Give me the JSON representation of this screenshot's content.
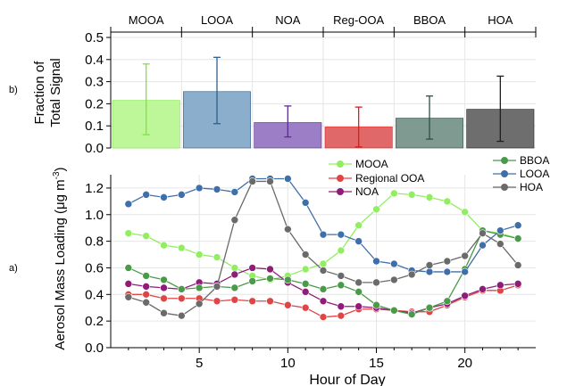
{
  "chart_data": [
    {
      "type": "bar",
      "panel_label": "b)",
      "categories": [
        "MOOA",
        "LOOA",
        "NOA",
        "Reg-OOA",
        "BBOA",
        "HOA"
      ],
      "values": [
        0.215,
        0.255,
        0.115,
        0.095,
        0.135,
        0.175
      ],
      "error_low": [
        0.06,
        0.11,
        0.05,
        0.005,
        0.04,
        0.03
      ],
      "error_high": [
        0.38,
        0.41,
        0.19,
        0.185,
        0.235,
        0.325
      ],
      "colors": [
        "#bdf79a",
        "#8aaecb",
        "#9c7ec6",
        "#e06868",
        "#7f9a91",
        "#6e6e6e"
      ],
      "error_colors": [
        "#7ae83a",
        "#2f5f8a",
        "#5a2d92",
        "#e21a1a",
        "#2f4f45",
        "#1f1f1f"
      ],
      "ylabel": [
        "Fraction of",
        "Total Signal"
      ],
      "ylim": [
        0,
        0.5
      ],
      "yticks": [
        "0.0",
        "0.1",
        "0.2",
        "0.3",
        "0.4",
        "0.5"
      ],
      "grid": true
    },
    {
      "type": "line",
      "panel_label": "a)",
      "xlabel": "Hour of Day",
      "ylabel": "Aerosol Mass Loading (μg m",
      "ylabel_sup": "-3",
      "ylabel_close": ")",
      "xlim": [
        0,
        24
      ],
      "ylim": [
        0,
        1.3
      ],
      "xticks": [
        "5",
        "10",
        "15",
        "20"
      ],
      "yticks": [
        "0.0",
        "0.2",
        "0.4",
        "0.6",
        "0.8",
        "1.0",
        "1.2"
      ],
      "grid": true,
      "x": [
        1,
        2,
        3,
        4,
        5,
        6,
        7,
        8,
        9,
        10,
        11,
        12,
        13,
        14,
        15,
        16,
        17,
        18,
        19,
        20,
        21,
        22,
        23
      ],
      "series": [
        {
          "name": "MOOA",
          "color": "#90ee60",
          "values": [
            0.86,
            0.84,
            0.77,
            0.75,
            0.7,
            0.68,
            0.6,
            0.54,
            0.51,
            0.54,
            0.59,
            0.63,
            0.73,
            0.92,
            1.04,
            1.16,
            1.15,
            1.13,
            1.1,
            1.02,
            0.88,
            0.86,
            0.82
          ]
        },
        {
          "name": "Regional OOA",
          "color": "#e04545",
          "values": [
            0.4,
            0.4,
            0.37,
            0.37,
            0.37,
            0.35,
            0.36,
            0.35,
            0.35,
            0.32,
            0.3,
            0.23,
            0.24,
            0.29,
            0.29,
            0.28,
            0.27,
            0.27,
            0.32,
            0.38,
            0.43,
            0.43,
            0.47
          ]
        },
        {
          "name": "NOA",
          "color": "#8e1d7a",
          "values": [
            0.48,
            0.46,
            0.45,
            0.44,
            0.49,
            0.48,
            0.55,
            0.6,
            0.59,
            0.49,
            0.42,
            0.35,
            0.31,
            0.31,
            0.3,
            0.28,
            0.26,
            0.3,
            0.33,
            0.39,
            0.44,
            0.47,
            0.48
          ]
        },
        {
          "name": "BBOA",
          "color": "#4a9a4a",
          "values": [
            0.6,
            0.54,
            0.51,
            0.44,
            0.45,
            0.46,
            0.45,
            0.5,
            0.52,
            0.51,
            0.48,
            0.44,
            0.47,
            0.42,
            0.32,
            0.28,
            0.25,
            0.3,
            0.35,
            0.59,
            0.88,
            0.85,
            0.82
          ]
        },
        {
          "name": "LOOA",
          "color": "#3f6fa8",
          "values": [
            1.08,
            1.15,
            1.13,
            1.15,
            1.2,
            1.19,
            1.17,
            1.27,
            1.27,
            1.27,
            1.09,
            0.85,
            0.85,
            0.8,
            0.65,
            0.63,
            0.58,
            0.57,
            0.57,
            0.57,
            0.77,
            0.88,
            0.92
          ]
        },
        {
          "name": "HOA",
          "color": "#6a6a6a",
          "values": [
            0.38,
            0.34,
            0.26,
            0.24,
            0.33,
            0.46,
            0.96,
            1.25,
            1.25,
            0.89,
            0.7,
            0.58,
            0.54,
            0.49,
            0.49,
            0.51,
            0.55,
            0.62,
            0.65,
            0.69,
            0.86,
            0.78,
            0.62
          ]
        }
      ]
    }
  ]
}
